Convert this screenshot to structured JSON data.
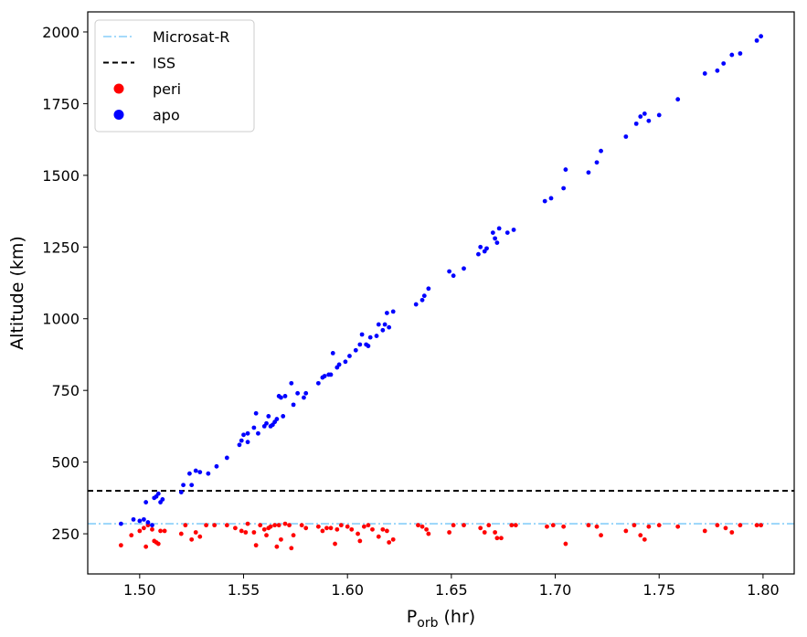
{
  "chart_data": {
    "type": "scatter",
    "xlabel_main": "P",
    "xlabel_sub": "orb",
    "xlabel_unit": " (hr)",
    "ylabel": "Altitude (km)",
    "xlim": [
      1.475,
      1.815
    ],
    "ylim": [
      110,
      2070
    ],
    "xticks": [
      1.5,
      1.55,
      1.6,
      1.65,
      1.7,
      1.75,
      1.8
    ],
    "xtick_labels": [
      "1.50",
      "1.55",
      "1.60",
      "1.65",
      "1.70",
      "1.75",
      "1.80"
    ],
    "yticks": [
      250,
      500,
      750,
      1000,
      1250,
      1500,
      1750,
      2000
    ],
    "ytick_labels": [
      "250",
      "500",
      "750",
      "1000",
      "1250",
      "1500",
      "1750",
      "2000"
    ],
    "grid": false,
    "legend_position": "top-left",
    "hlines": [
      {
        "name": "Microsat-R",
        "y": 285,
        "color": "#87cefa",
        "style": "dashdot"
      },
      {
        "name": "ISS",
        "y": 400,
        "color": "#000000",
        "style": "dashed"
      }
    ],
    "series": [
      {
        "name": "peri",
        "color": "#ff0000",
        "points": [
          [
            1.491,
            210
          ],
          [
            1.496,
            245
          ],
          [
            1.5,
            260
          ],
          [
            1.502,
            270
          ],
          [
            1.503,
            205
          ],
          [
            1.504,
            280
          ],
          [
            1.506,
            265
          ],
          [
            1.507,
            225
          ],
          [
            1.508,
            220
          ],
          [
            1.509,
            215
          ],
          [
            1.51,
            260
          ],
          [
            1.512,
            260
          ],
          [
            1.52,
            250
          ],
          [
            1.522,
            280
          ],
          [
            1.525,
            230
          ],
          [
            1.527,
            255
          ],
          [
            1.529,
            240
          ],
          [
            1.532,
            280
          ],
          [
            1.536,
            280
          ],
          [
            1.542,
            280
          ],
          [
            1.546,
            270
          ],
          [
            1.549,
            260
          ],
          [
            1.551,
            255
          ],
          [
            1.552,
            285
          ],
          [
            1.555,
            255
          ],
          [
            1.556,
            210
          ],
          [
            1.558,
            280
          ],
          [
            1.56,
            265
          ],
          [
            1.561,
            245
          ],
          [
            1.562,
            270
          ],
          [
            1.563,
            275
          ],
          [
            1.565,
            280
          ],
          [
            1.566,
            205
          ],
          [
            1.567,
            280
          ],
          [
            1.568,
            230
          ],
          [
            1.57,
            285
          ],
          [
            1.572,
            280
          ],
          [
            1.573,
            200
          ],
          [
            1.574,
            245
          ],
          [
            1.578,
            280
          ],
          [
            1.58,
            270
          ],
          [
            1.586,
            275
          ],
          [
            1.588,
            260
          ],
          [
            1.59,
            270
          ],
          [
            1.592,
            270
          ],
          [
            1.594,
            215
          ],
          [
            1.595,
            265
          ],
          [
            1.597,
            280
          ],
          [
            1.6,
            275
          ],
          [
            1.602,
            265
          ],
          [
            1.605,
            250
          ],
          [
            1.606,
            225
          ],
          [
            1.608,
            275
          ],
          [
            1.61,
            280
          ],
          [
            1.612,
            265
          ],
          [
            1.615,
            240
          ],
          [
            1.617,
            265
          ],
          [
            1.619,
            260
          ],
          [
            1.62,
            220
          ],
          [
            1.622,
            230
          ],
          [
            1.634,
            280
          ],
          [
            1.636,
            275
          ],
          [
            1.638,
            265
          ],
          [
            1.639,
            250
          ],
          [
            1.649,
            255
          ],
          [
            1.651,
            280
          ],
          [
            1.656,
            280
          ],
          [
            1.664,
            270
          ],
          [
            1.666,
            255
          ],
          [
            1.668,
            280
          ],
          [
            1.671,
            255
          ],
          [
            1.672,
            235
          ],
          [
            1.674,
            235
          ],
          [
            1.679,
            280
          ],
          [
            1.681,
            280
          ],
          [
            1.696,
            275
          ],
          [
            1.699,
            280
          ],
          [
            1.704,
            275
          ],
          [
            1.705,
            215
          ],
          [
            1.716,
            280
          ],
          [
            1.72,
            275
          ],
          [
            1.722,
            245
          ],
          [
            1.734,
            260
          ],
          [
            1.738,
            280
          ],
          [
            1.741,
            245
          ],
          [
            1.743,
            230
          ],
          [
            1.745,
            275
          ],
          [
            1.75,
            280
          ],
          [
            1.759,
            275
          ],
          [
            1.772,
            260
          ],
          [
            1.778,
            280
          ],
          [
            1.782,
            270
          ],
          [
            1.785,
            255
          ],
          [
            1.789,
            280
          ],
          [
            1.797,
            280
          ],
          [
            1.799,
            280
          ]
        ]
      },
      {
        "name": "apo",
        "color": "#0000ff",
        "points": [
          [
            1.491,
            285
          ],
          [
            1.497,
            300
          ],
          [
            1.5,
            295
          ],
          [
            1.502,
            300
          ],
          [
            1.503,
            360
          ],
          [
            1.504,
            290
          ],
          [
            1.506,
            280
          ],
          [
            1.507,
            375
          ],
          [
            1.508,
            380
          ],
          [
            1.509,
            390
          ],
          [
            1.51,
            360
          ],
          [
            1.511,
            370
          ],
          [
            1.52,
            395
          ],
          [
            1.521,
            420
          ],
          [
            1.524,
            460
          ],
          [
            1.525,
            420
          ],
          [
            1.527,
            470
          ],
          [
            1.529,
            465
          ],
          [
            1.533,
            460
          ],
          [
            1.537,
            485
          ],
          [
            1.542,
            515
          ],
          [
            1.548,
            560
          ],
          [
            1.549,
            575
          ],
          [
            1.55,
            595
          ],
          [
            1.552,
            600
          ],
          [
            1.552,
            570
          ],
          [
            1.555,
            620
          ],
          [
            1.556,
            670
          ],
          [
            1.557,
            600
          ],
          [
            1.56,
            625
          ],
          [
            1.561,
            635
          ],
          [
            1.562,
            660
          ],
          [
            1.563,
            625
          ],
          [
            1.564,
            630
          ],
          [
            1.565,
            640
          ],
          [
            1.566,
            650
          ],
          [
            1.567,
            730
          ],
          [
            1.568,
            725
          ],
          [
            1.569,
            660
          ],
          [
            1.57,
            730
          ],
          [
            1.573,
            775
          ],
          [
            1.574,
            700
          ],
          [
            1.576,
            740
          ],
          [
            1.579,
            725
          ],
          [
            1.58,
            740
          ],
          [
            1.586,
            775
          ],
          [
            1.588,
            795
          ],
          [
            1.589,
            800
          ],
          [
            1.591,
            805
          ],
          [
            1.592,
            805
          ],
          [
            1.593,
            880
          ],
          [
            1.595,
            830
          ],
          [
            1.596,
            840
          ],
          [
            1.599,
            850
          ],
          [
            1.601,
            870
          ],
          [
            1.604,
            890
          ],
          [
            1.606,
            910
          ],
          [
            1.607,
            945
          ],
          [
            1.609,
            910
          ],
          [
            1.61,
            905
          ],
          [
            1.611,
            935
          ],
          [
            1.614,
            940
          ],
          [
            1.615,
            980
          ],
          [
            1.617,
            960
          ],
          [
            1.618,
            980
          ],
          [
            1.619,
            1020
          ],
          [
            1.62,
            970
          ],
          [
            1.622,
            1025
          ],
          [
            1.633,
            1050
          ],
          [
            1.636,
            1065
          ],
          [
            1.637,
            1080
          ],
          [
            1.639,
            1105
          ],
          [
            1.649,
            1165
          ],
          [
            1.651,
            1150
          ],
          [
            1.656,
            1175
          ],
          [
            1.663,
            1225
          ],
          [
            1.664,
            1250
          ],
          [
            1.666,
            1235
          ],
          [
            1.667,
            1245
          ],
          [
            1.67,
            1300
          ],
          [
            1.671,
            1280
          ],
          [
            1.672,
            1265
          ],
          [
            1.673,
            1315
          ],
          [
            1.677,
            1300
          ],
          [
            1.68,
            1310
          ],
          [
            1.695,
            1410
          ],
          [
            1.698,
            1420
          ],
          [
            1.704,
            1455
          ],
          [
            1.705,
            1520
          ],
          [
            1.716,
            1510
          ],
          [
            1.72,
            1545
          ],
          [
            1.722,
            1585
          ],
          [
            1.734,
            1635
          ],
          [
            1.739,
            1680
          ],
          [
            1.741,
            1705
          ],
          [
            1.743,
            1715
          ],
          [
            1.745,
            1690
          ],
          [
            1.75,
            1710
          ],
          [
            1.759,
            1765
          ],
          [
            1.772,
            1855
          ],
          [
            1.778,
            1865
          ],
          [
            1.781,
            1890
          ],
          [
            1.785,
            1920
          ],
          [
            1.789,
            1925
          ],
          [
            1.797,
            1970
          ],
          [
            1.799,
            1985
          ]
        ]
      }
    ]
  }
}
